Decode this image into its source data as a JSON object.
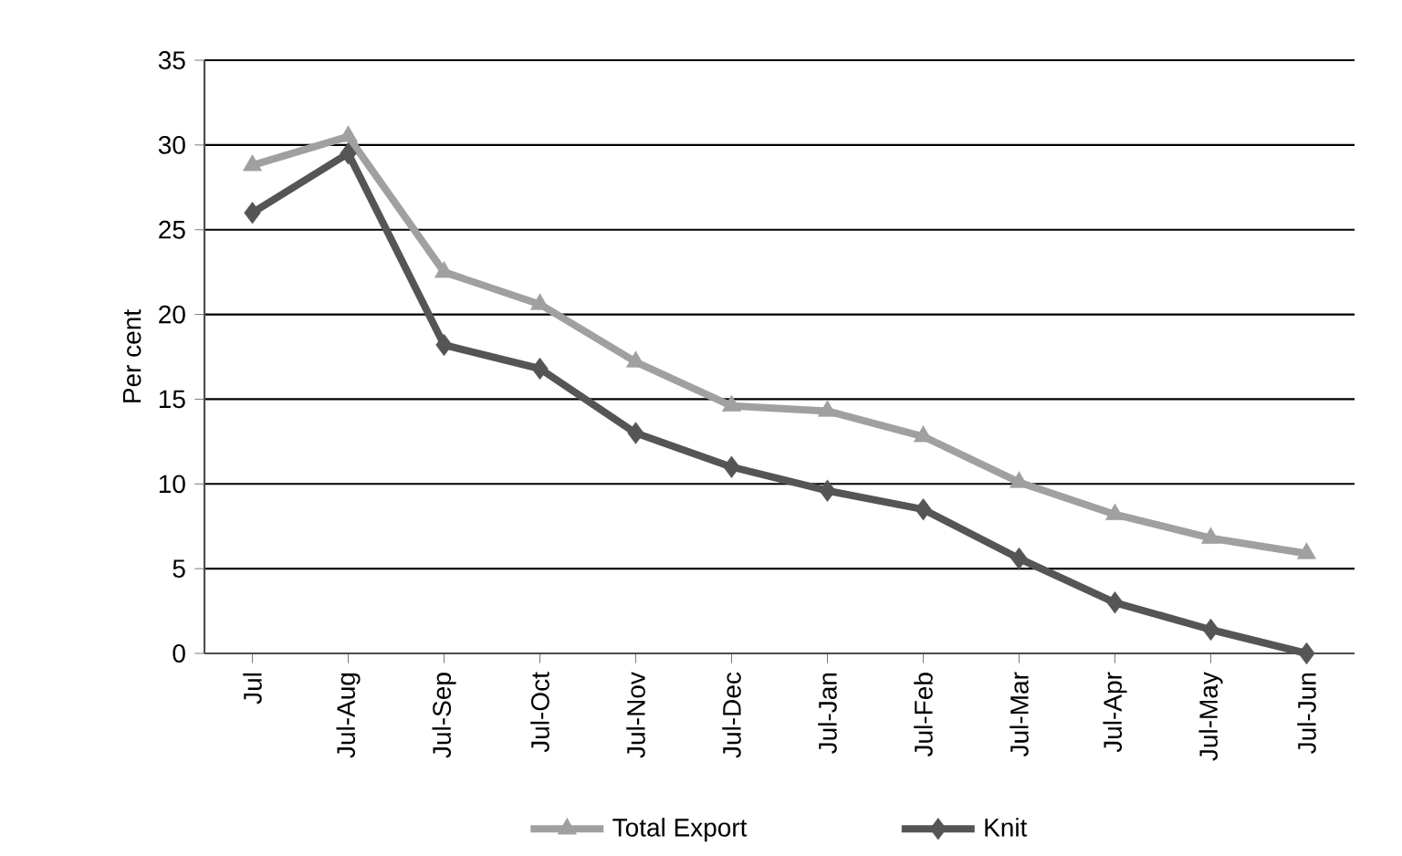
{
  "chart_data": {
    "type": "line",
    "ylabel": "Per cent",
    "categories": [
      "Jul",
      "Jul-Aug",
      "Jul-Sep",
      "Jul-Oct",
      "Jul-Nov",
      "Jul-Dec",
      "Jul-Jan",
      "Jul-Feb",
      "Jul-Mar",
      "Jul-Apr",
      "Jul-May",
      "Jul-Jun"
    ],
    "series": [
      {
        "name": "Total Export",
        "color": "#a0a0a0",
        "marker": "triangle",
        "values": [
          28.8,
          30.5,
          22.5,
          20.6,
          17.2,
          14.6,
          14.3,
          12.8,
          10.1,
          8.2,
          6.8,
          5.9
        ]
      },
      {
        "name": "Knit",
        "color": "#555555",
        "marker": "diamond",
        "values": [
          26,
          29.5,
          18.2,
          16.8,
          13,
          11,
          9.6,
          8.5,
          5.6,
          3,
          1.4,
          0
        ]
      }
    ],
    "ylim": [
      0,
      35
    ],
    "yticks": [
      0,
      5,
      10,
      15,
      20,
      25,
      30,
      35
    ],
    "grid": "y",
    "legend": "bottom"
  }
}
